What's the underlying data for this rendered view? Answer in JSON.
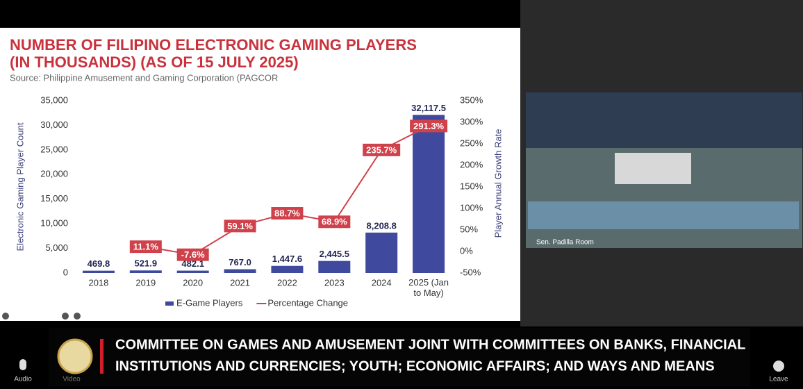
{
  "slide": {
    "title_lines": [
      "NUMBER OF FILIPINO ELECTRONIC GAMING PLAYERS",
      "(IN THOUSANDS)  (AS OF 15 JULY 2025)"
    ],
    "source": "Source: Philippine Amusement and Gaming Corporation (PAGCOR"
  },
  "chart_data": {
    "type": "bar",
    "ylabel": "Electronic Gaming Player Count",
    "y2label": "Player Annual Growth Rate",
    "categories": [
      "2018",
      "2019",
      "2020",
      "2021",
      "2022",
      "2023",
      "2024",
      "2025 (Jan to May)"
    ],
    "series": [
      {
        "name": "E-Game Players",
        "type": "bar",
        "color": "#3f4a9e",
        "values": [
          469.8,
          521.9,
          482.1,
          767.0,
          1447.6,
          2445.5,
          8208.8,
          32117.5
        ],
        "value_labels": [
          "469.8",
          "521.9",
          "482.1",
          "767.0",
          "1,447.6",
          "2,445.5",
          "8,208.8",
          "32,117.5"
        ]
      },
      {
        "name": "Percentage Change",
        "type": "line",
        "axis": "y2",
        "color": "#d0424b",
        "values": [
          null,
          11.1,
          -7.6,
          59.1,
          88.7,
          68.9,
          235.7,
          291.3
        ],
        "value_labels": [
          null,
          "11.1%",
          "-7.6%",
          "59.1%",
          "88.7%",
          "68.9%",
          "235.7%",
          "291.3%"
        ]
      }
    ],
    "ylim": [
      0,
      35000
    ],
    "yticks": [
      0,
      {
        "value": 5000,
        "label": "5,000"
      },
      {
        "value": 10000,
        "label": "10,000"
      },
      {
        "value": 15000,
        "label": "15,000"
      },
      {
        "value": 20000,
        "label": "20,000"
      },
      {
        "value": 25000,
        "label": "25,000"
      },
      {
        "value": 30000,
        "label": "30,000"
      },
      {
        "value": 35000,
        "label": "35,000"
      }
    ],
    "y2lim": [
      -50,
      350
    ],
    "y2ticks": [
      {
        "value": -50,
        "label": "-50%"
      },
      {
        "value": 0,
        "label": "0%"
      },
      {
        "value": 50,
        "label": "50%"
      },
      {
        "value": 100,
        "label": "100%"
      },
      {
        "value": 150,
        "label": "150%"
      },
      {
        "value": 200,
        "label": "200%"
      },
      {
        "value": 250,
        "label": "250%"
      },
      {
        "value": 300,
        "label": "300%"
      },
      {
        "value": 350,
        "label": "350%"
      }
    ],
    "legend": "bottom",
    "grid": false
  },
  "video": {
    "room": "Sen. Padilla Room"
  },
  "banner": {
    "lines": [
      "COMMITTEE ON GAMES AND AMUSEMENT JOINT WITH COMMITTEES ON BANKS, FINANCIAL",
      "INSTITUTIONS AND CURRENCIES; YOUTH; ECONOMIC AFFAIRS; AND WAYS AND MEANS"
    ]
  },
  "toolbar": {
    "audio": "Audio",
    "video": "Video",
    "leave": "Leave"
  }
}
